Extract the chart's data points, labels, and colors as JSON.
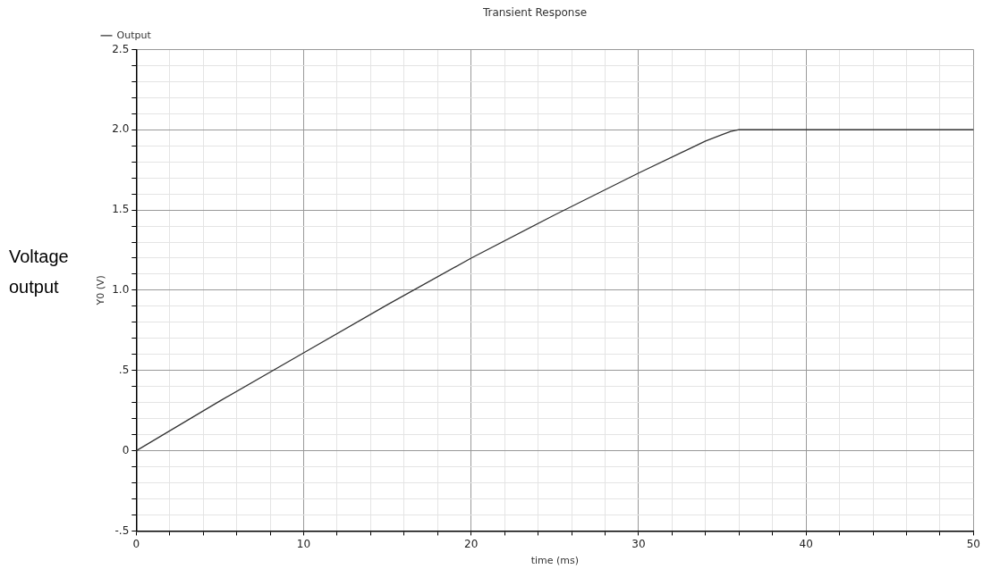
{
  "chart_data": {
    "type": "line",
    "title": "Transient Response",
    "xlabel": "time (ms)",
    "ylabel": "Y0 (V)",
    "annotations": [
      "Voltage output"
    ],
    "legend": "top left",
    "grid": true,
    "marker": "none",
    "line_style": "solid",
    "xlim": [
      0,
      50
    ],
    "ylim": [
      -0.5,
      2.5
    ],
    "xticks": [
      0,
      {
        "value": 2,
        "label": null
      },
      {
        "value": 4,
        "label": null
      },
      {
        "value": 6,
        "label": null
      },
      {
        "value": 8,
        "label": null
      },
      10,
      {
        "value": 12,
        "label": null
      },
      {
        "value": 14,
        "label": null
      },
      {
        "value": 16,
        "label": null
      },
      {
        "value": 18,
        "label": null
      },
      20,
      {
        "value": 22,
        "label": null
      },
      {
        "value": 24,
        "label": null
      },
      {
        "value": 26,
        "label": null
      },
      {
        "value": 28,
        "label": null
      },
      30,
      {
        "value": 32,
        "label": null
      },
      {
        "value": 34,
        "label": null
      },
      {
        "value": 36,
        "label": null
      },
      {
        "value": 38,
        "label": null
      },
      40,
      {
        "value": 42,
        "label": null
      },
      {
        "value": 44,
        "label": null
      },
      {
        "value": 46,
        "label": null
      },
      {
        "value": 48,
        "label": null
      },
      50
    ],
    "yticks": [
      {
        "value": -0.5,
        "label": "-.5"
      },
      {
        "value": -0.4,
        "label": null
      },
      {
        "value": -0.3,
        "label": null
      },
      {
        "value": -0.2,
        "label": null
      },
      {
        "value": -0.1,
        "label": null
      },
      0,
      {
        "value": 0.1,
        "label": null
      },
      {
        "value": 0.2,
        "label": null
      },
      {
        "value": 0.3,
        "label": null
      },
      {
        "value": 0.4,
        "label": null
      },
      {
        "value": 0.5,
        "label": ".5"
      },
      {
        "value": 0.6,
        "label": null
      },
      {
        "value": 0.7,
        "label": null
      },
      {
        "value": 0.8,
        "label": null
      },
      {
        "value": 0.9,
        "label": null
      },
      {
        "value": 1.0,
        "label": "1.0"
      },
      {
        "value": 1.1,
        "label": null
      },
      {
        "value": 1.2,
        "label": null
      },
      {
        "value": 1.3,
        "label": null
      },
      {
        "value": 1.4,
        "label": null
      },
      {
        "value": 1.5,
        "label": "1.5"
      },
      {
        "value": 1.6,
        "label": null
      },
      {
        "value": 1.7,
        "label": null
      },
      {
        "value": 1.8,
        "label": null
      },
      {
        "value": 1.9,
        "label": null
      },
      {
        "value": 2.0,
        "label": "2.0"
      },
      {
        "value": 2.1,
        "label": null
      },
      {
        "value": 2.2,
        "label": null
      },
      {
        "value": 2.3,
        "label": null
      },
      {
        "value": 2.4,
        "label": null
      },
      {
        "value": 2.5,
        "label": "2.5"
      }
    ],
    "series": [
      {
        "name": "Output",
        "color": "#333333",
        "x": [
          0,
          5,
          10,
          15,
          20,
          25,
          30,
          33,
          34,
          35,
          35.5,
          36,
          40,
          45,
          50
        ],
        "values": [
          0,
          0.31,
          0.61,
          0.91,
          1.2,
          1.47,
          1.73,
          1.88,
          1.93,
          1.97,
          1.99,
          2.0,
          2.0,
          2.0,
          2.0
        ]
      }
    ]
  }
}
